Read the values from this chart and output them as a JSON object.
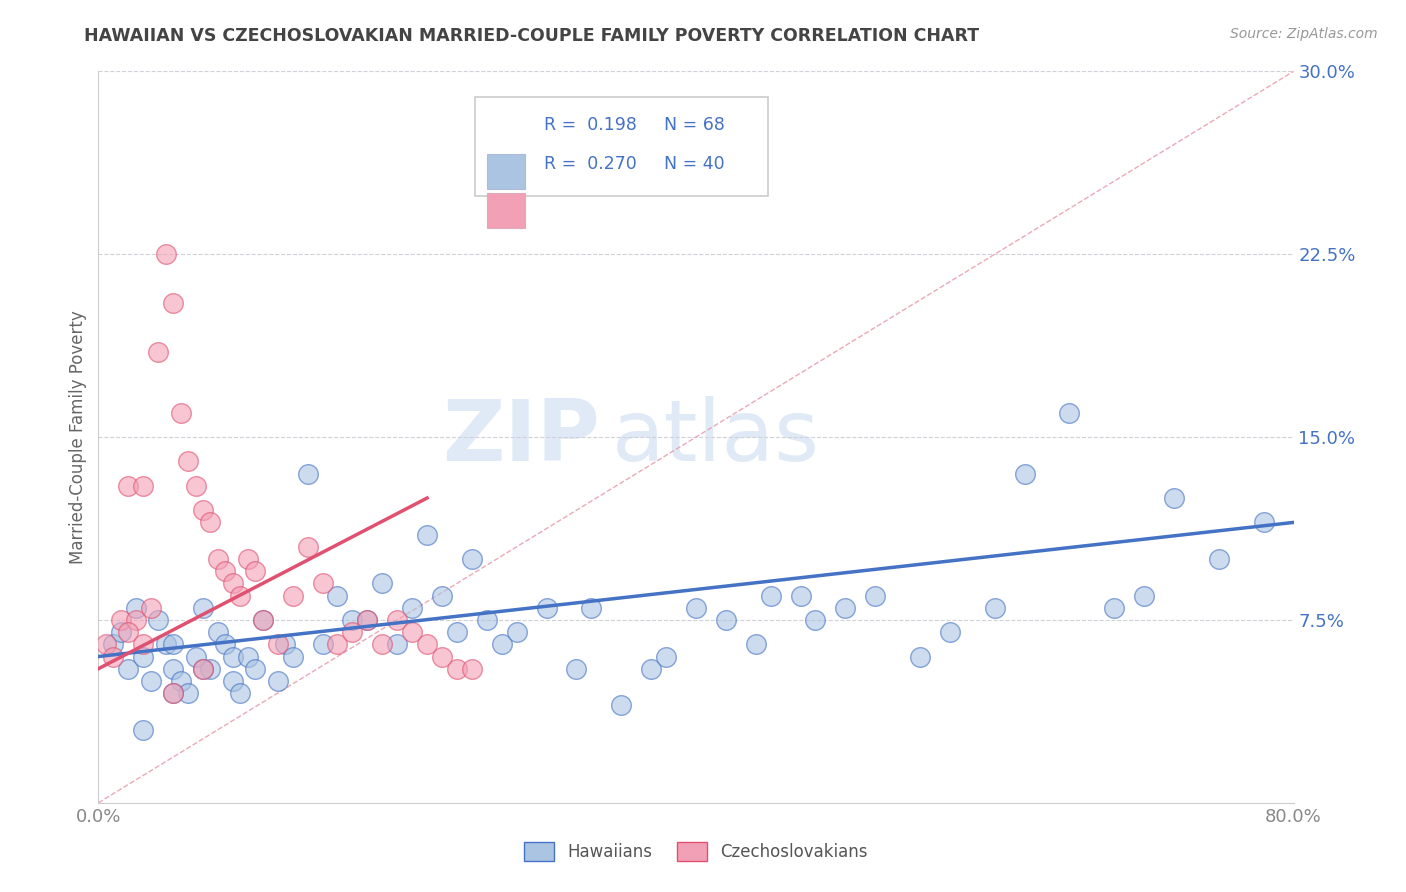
{
  "title": "HAWAIIAN VS CZECHOSLOVAKIAN MARRIED-COUPLE FAMILY POVERTY CORRELATION CHART",
  "source": "Source: ZipAtlas.com",
  "ylabel": "Married-Couple Family Poverty",
  "xlim": [
    0,
    80
  ],
  "ylim": [
    0,
    30
  ],
  "yticks": [
    0,
    7.5,
    15.0,
    22.5,
    30.0
  ],
  "yticklabels": [
    "",
    "7.5%",
    "15.0%",
    "22.5%",
    "30.0%"
  ],
  "color_hawaiian": "#aac4e2",
  "color_czech": "#f2a0b5",
  "color_blue": "#4472C4",
  "color_pink": "#E05070",
  "background_color": "#ffffff",
  "grid_color": "#d0d0d8",
  "diag_color": "#e8b0c0",
  "hawaiians_x": [
    1.0,
    1.5,
    2.0,
    2.5,
    3.0,
    3.5,
    4.0,
    4.5,
    5.0,
    5.0,
    5.5,
    6.0,
    6.5,
    7.0,
    7.5,
    8.0,
    8.5,
    9.0,
    9.0,
    9.5,
    10.0,
    10.5,
    11.0,
    12.0,
    12.5,
    13.0,
    14.0,
    15.0,
    16.0,
    17.0,
    18.0,
    19.0,
    20.0,
    21.0,
    22.0,
    23.0,
    24.0,
    25.0,
    26.0,
    27.0,
    28.0,
    30.0,
    32.0,
    33.0,
    35.0,
    37.0,
    38.0,
    40.0,
    42.0,
    44.0,
    45.0,
    47.0,
    48.0,
    50.0,
    52.0,
    55.0,
    57.0,
    60.0,
    62.0,
    65.0,
    68.0,
    70.0,
    72.0,
    75.0,
    78.0,
    3.0,
    5.0,
    7.0
  ],
  "hawaiians_y": [
    6.5,
    7.0,
    5.5,
    8.0,
    6.0,
    5.0,
    7.5,
    6.5,
    5.5,
    6.5,
    5.0,
    4.5,
    6.0,
    8.0,
    5.5,
    7.0,
    6.5,
    5.0,
    6.0,
    4.5,
    6.0,
    5.5,
    7.5,
    5.0,
    6.5,
    6.0,
    13.5,
    6.5,
    8.5,
    7.5,
    7.5,
    9.0,
    6.5,
    8.0,
    11.0,
    8.5,
    7.0,
    10.0,
    7.5,
    6.5,
    7.0,
    8.0,
    5.5,
    8.0,
    4.0,
    5.5,
    6.0,
    8.0,
    7.5,
    6.5,
    8.5,
    8.5,
    7.5,
    8.0,
    8.5,
    6.0,
    7.0,
    8.0,
    13.5,
    16.0,
    8.0,
    8.5,
    12.5,
    10.0,
    11.5,
    3.0,
    4.5,
    5.5
  ],
  "czechs_x": [
    0.5,
    1.0,
    1.5,
    2.0,
    2.5,
    3.0,
    3.5,
    4.0,
    4.5,
    5.0,
    5.5,
    6.0,
    6.5,
    7.0,
    7.5,
    8.0,
    8.5,
    9.0,
    9.5,
    10.0,
    10.5,
    11.0,
    12.0,
    13.0,
    14.0,
    15.0,
    16.0,
    17.0,
    18.0,
    19.0,
    20.0,
    21.0,
    22.0,
    23.0,
    24.0,
    25.0,
    2.0,
    3.0,
    5.0,
    7.0
  ],
  "czechs_y": [
    6.5,
    6.0,
    7.5,
    13.0,
    7.5,
    13.0,
    8.0,
    18.5,
    22.5,
    20.5,
    16.0,
    14.0,
    13.0,
    12.0,
    11.5,
    10.0,
    9.5,
    9.0,
    8.5,
    10.0,
    9.5,
    7.5,
    6.5,
    8.5,
    10.5,
    9.0,
    6.5,
    7.0,
    7.5,
    6.5,
    7.5,
    7.0,
    6.5,
    6.0,
    5.5,
    5.5,
    7.0,
    6.5,
    4.5,
    5.5
  ],
  "hawaiian_trend_x": [
    0,
    80
  ],
  "hawaiian_trend_y": [
    6.0,
    11.5
  ],
  "czech_trend_x": [
    0,
    22
  ],
  "czech_trend_y": [
    5.5,
    12.5
  ],
  "diag_line_x": [
    0,
    80
  ],
  "diag_line_y": [
    0,
    30
  ]
}
